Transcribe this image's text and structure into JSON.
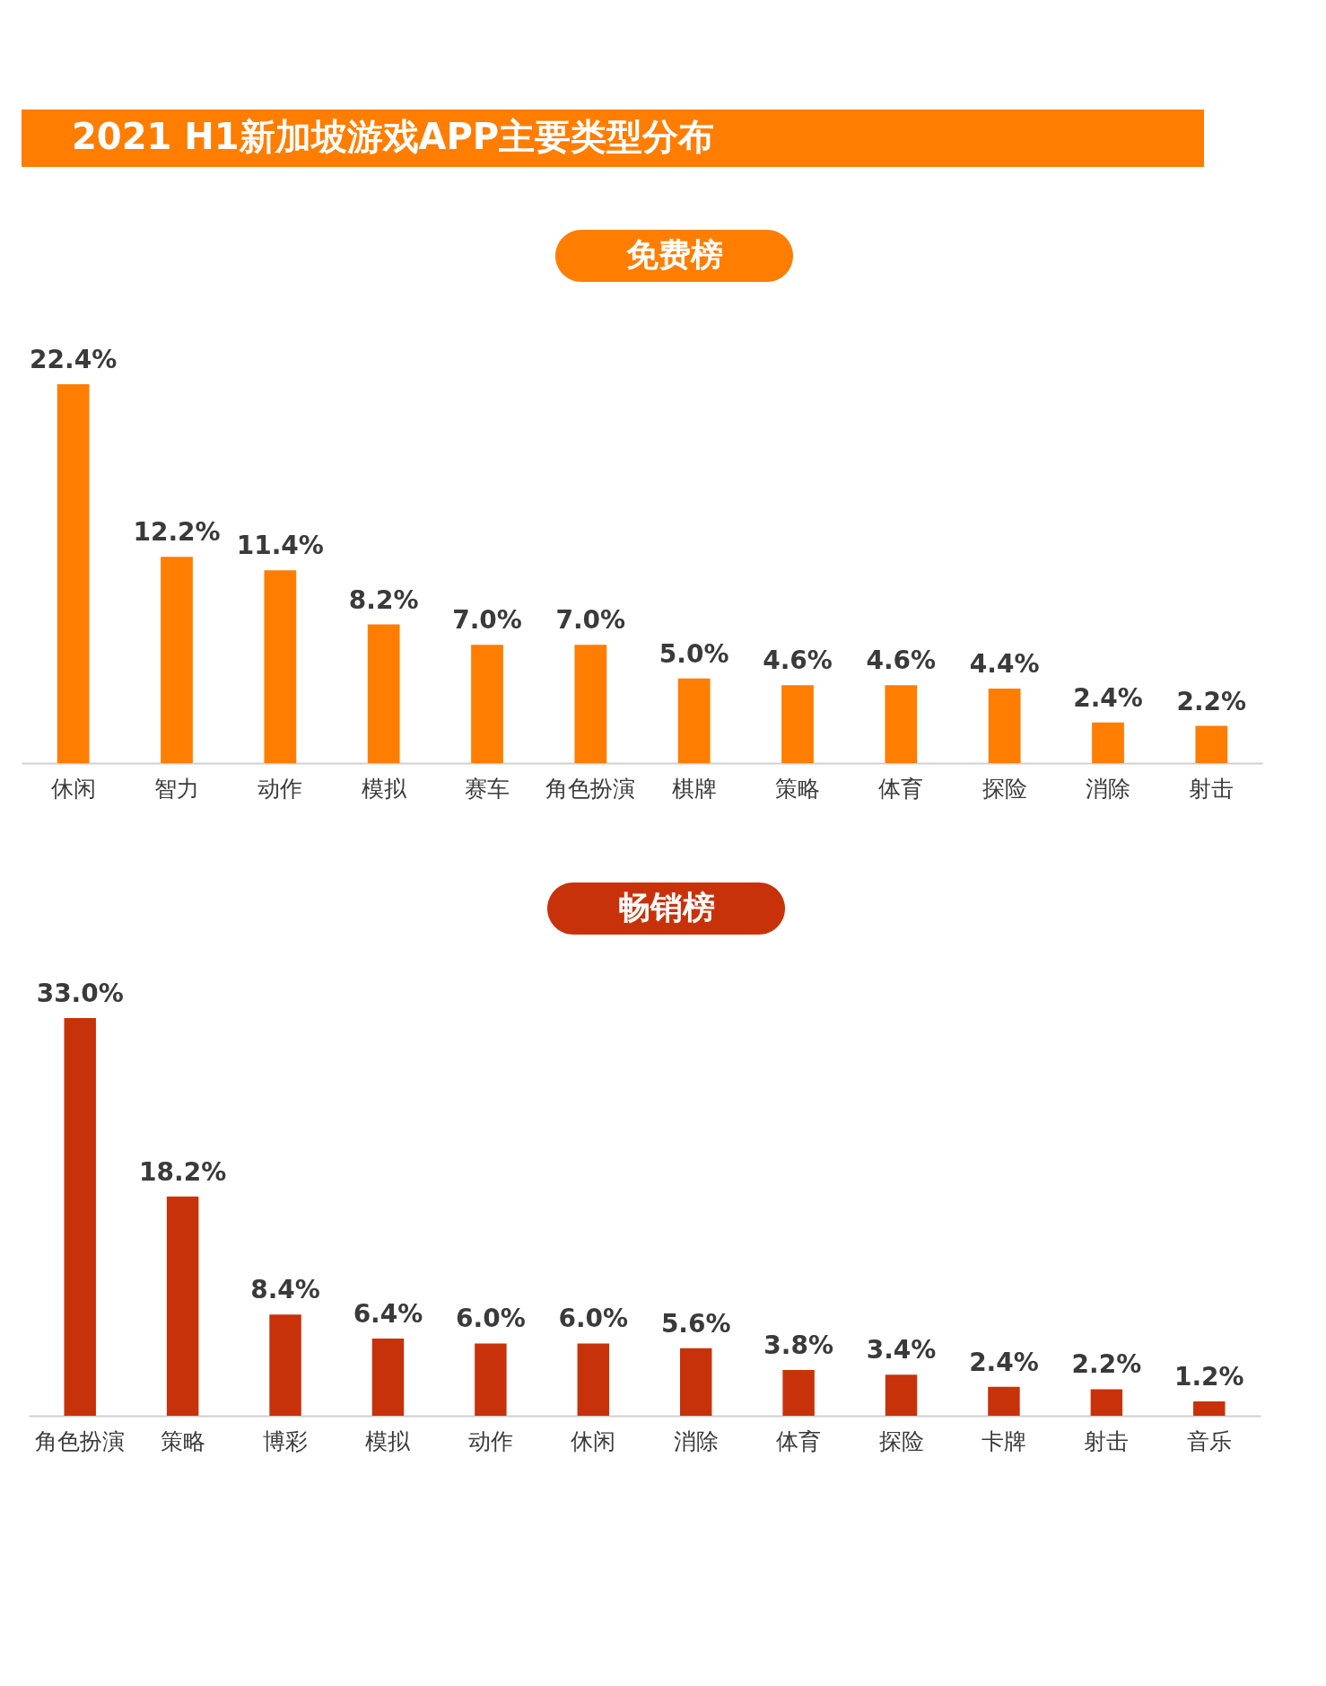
{
  "chart_data": [
    {
      "type": "bar",
      "title": "2021 H1新加坡游戏APP主要类型分布",
      "subtitle": "免费榜",
      "color": "#ff7d00",
      "categories": [
        "休闲",
        "智力",
        "动作",
        "模拟",
        "赛车",
        "角色扮演",
        "棋牌",
        "策略",
        "体育",
        "探险",
        "消除",
        "射击"
      ],
      "values": [
        22.4,
        12.2,
        11.4,
        8.2,
        7.0,
        7.0,
        5.0,
        4.6,
        4.6,
        4.4,
        2.4,
        2.2
      ],
      "value_labels": [
        "22.4%",
        "12.2%",
        "11.4%",
        "8.2%",
        "7.0%",
        "7.0%",
        "5.0%",
        "4.6%",
        "4.6%",
        "4.4%",
        "2.4%",
        "2.2%"
      ]
    },
    {
      "type": "bar",
      "subtitle": "畅销榜",
      "color": "#c8320a",
      "categories": [
        "角色扮演",
        "策略",
        "博彩",
        "模拟",
        "动作",
        "休闲",
        "消除",
        "体育",
        "探险",
        "卡牌",
        "射击",
        "音乐"
      ],
      "values": [
        33.0,
        18.2,
        8.4,
        6.4,
        6.0,
        6.0,
        5.6,
        3.8,
        3.4,
        2.4,
        2.2,
        1.2
      ],
      "value_labels": [
        "33.0%",
        "18.2%",
        "8.4%",
        "6.4%",
        "6.0%",
        "6.0%",
        "5.6%",
        "3.8%",
        "3.4%",
        "2.4%",
        "2.2%",
        "1.2%"
      ]
    }
  ]
}
